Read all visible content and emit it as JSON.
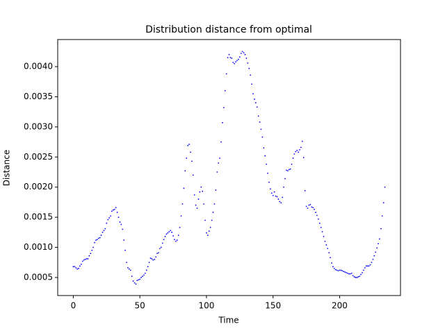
{
  "chart_data": {
    "type": "scatter",
    "title": "Distribution distance from optimal",
    "x_label": "Time",
    "y_label": "Distance",
    "xlim": [
      -11.7,
      245.7
    ],
    "ylim": [
      0.0002,
      0.00445
    ],
    "xticks": [
      0,
      50,
      100,
      150,
      200
    ],
    "yticks": [
      {
        "value": 0.0005,
        "label": "0.0005"
      },
      {
        "value": 0.001,
        "label": "0.0010"
      },
      {
        "value": 0.0015,
        "label": "0.0015"
      },
      {
        "value": 0.002,
        "label": "0.0020"
      },
      {
        "value": 0.0025,
        "label": "0.0025"
      },
      {
        "value": 0.003,
        "label": "0.0030"
      },
      {
        "value": 0.0035,
        "label": "0.0035"
      },
      {
        "value": 0.004,
        "label": "0.0040"
      }
    ],
    "grid": false,
    "color": "#0000ff",
    "x": [
      0,
      1,
      2,
      3,
      4,
      5,
      6,
      7,
      8,
      9,
      10,
      11,
      12,
      13,
      14,
      15,
      16,
      17,
      18,
      19,
      20,
      21,
      22,
      23,
      24,
      25,
      26,
      27,
      28,
      29,
      30,
      31,
      32,
      33,
      34,
      35,
      36,
      37,
      38,
      39,
      40,
      41,
      42,
      43,
      44,
      45,
      46,
      47,
      48,
      49,
      50,
      51,
      52,
      53,
      54,
      55,
      56,
      57,
      58,
      59,
      60,
      61,
      62,
      63,
      64,
      65,
      66,
      67,
      68,
      69,
      70,
      71,
      72,
      73,
      74,
      75,
      76,
      77,
      78,
      79,
      80,
      81,
      82,
      83,
      84,
      85,
      86,
      87,
      88,
      89,
      90,
      91,
      92,
      93,
      94,
      95,
      96,
      97,
      98,
      99,
      100,
      101,
      102,
      103,
      104,
      105,
      106,
      107,
      108,
      109,
      110,
      111,
      112,
      113,
      114,
      115,
      116,
      117,
      118,
      119,
      120,
      121,
      122,
      123,
      124,
      125,
      126,
      127,
      128,
      129,
      130,
      131,
      132,
      133,
      134,
      135,
      136,
      137,
      138,
      139,
      140,
      141,
      142,
      143,
      144,
      145,
      146,
      147,
      148,
      149,
      150,
      151,
      152,
      153,
      154,
      155,
      156,
      157,
      158,
      159,
      160,
      161,
      162,
      163,
      164,
      165,
      166,
      167,
      168,
      169,
      170,
      171,
      172,
      173,
      174,
      175,
      176,
      177,
      178,
      179,
      180,
      181,
      182,
      183,
      184,
      185,
      186,
      187,
      188,
      189,
      190,
      191,
      192,
      193,
      194,
      195,
      196,
      197,
      198,
      199,
      200,
      201,
      202,
      203,
      204,
      205,
      206,
      207,
      208,
      209,
      210,
      211,
      212,
      213,
      214,
      215,
      216,
      217,
      218,
      219,
      220,
      221,
      222,
      223,
      224,
      225,
      226,
      227,
      228,
      229,
      230,
      231,
      232,
      233,
      234
    ],
    "values": [
      0.00068,
      0.00068,
      0.00066,
      0.00064,
      0.00065,
      0.00069,
      0.00072,
      0.00077,
      0.00079,
      0.0008,
      0.00081,
      0.00081,
      0.00086,
      0.0009,
      0.00095,
      0.001,
      0.00108,
      0.00112,
      0.00113,
      0.00115,
      0.00116,
      0.0012,
      0.00125,
      0.00128,
      0.00131,
      0.0014,
      0.00146,
      0.00149,
      0.00152,
      0.0016,
      0.00162,
      0.00163,
      0.00166,
      0.00158,
      0.0015,
      0.00142,
      0.00138,
      0.0013,
      0.00112,
      0.00095,
      0.00075,
      0.00066,
      0.00064,
      0.00062,
      0.00052,
      0.00044,
      0.00041,
      0.00039,
      0.00045,
      0.00046,
      0.00047,
      0.0005,
      0.00052,
      0.00054,
      0.00057,
      0.00062,
      0.00068,
      0.00075,
      0.00082,
      0.00081,
      0.00079,
      0.0008,
      0.00084,
      0.0009,
      0.00091,
      0.00098,
      0.001,
      0.00107,
      0.00113,
      0.00118,
      0.00122,
      0.00124,
      0.00126,
      0.00128,
      0.00125,
      0.00119,
      0.00113,
      0.0011,
      0.00112,
      0.0012,
      0.00133,
      0.00152,
      0.00172,
      0.00198,
      0.00227,
      0.00248,
      0.00269,
      0.00271,
      0.00258,
      0.00243,
      0.0022,
      0.00187,
      0.0017,
      0.00165,
      0.0018,
      0.00192,
      0.002,
      0.00193,
      0.00172,
      0.00145,
      0.00124,
      0.0012,
      0.00127,
      0.00133,
      0.00145,
      0.00158,
      0.00172,
      0.00195,
      0.00225,
      0.0024,
      0.00248,
      0.00275,
      0.00307,
      0.00332,
      0.0036,
      0.00388,
      0.00415,
      0.0042,
      0.00415,
      0.00414,
      0.00407,
      0.00405,
      0.00408,
      0.0041,
      0.00412,
      0.00416,
      0.00422,
      0.00425,
      0.00423,
      0.0042,
      0.00414,
      0.00406,
      0.00397,
      0.00386,
      0.00371,
      0.00355,
      0.00346,
      0.0034,
      0.00333,
      0.00318,
      0.00308,
      0.00296,
      0.00283,
      0.00265,
      0.00252,
      0.00238,
      0.00223,
      0.00208,
      0.00197,
      0.0019,
      0.00186,
      0.00192,
      0.00185,
      0.00184,
      0.0018,
      0.00176,
      0.00174,
      0.00183,
      0.002,
      0.00214,
      0.00228,
      0.00227,
      0.00229,
      0.0023,
      0.00238,
      0.00248,
      0.00255,
      0.00259,
      0.00261,
      0.00258,
      0.00262,
      0.00266,
      0.00276,
      0.00249,
      0.00194,
      0.00168,
      0.00165,
      0.0017,
      0.00171,
      0.00167,
      0.00166,
      0.00163,
      0.00158,
      0.00153,
      0.00147,
      0.0014,
      0.00133,
      0.00126,
      0.00118,
      0.0011,
      0.00104,
      0.00098,
      0.00091,
      0.00083,
      0.00074,
      0.00068,
      0.00065,
      0.00063,
      0.00062,
      0.00061,
      0.00062,
      0.00062,
      0.00061,
      0.0006,
      0.00059,
      0.00058,
      0.00057,
      0.00056,
      0.00056,
      0.00057,
      0.00053,
      0.00051,
      0.0005,
      0.0005,
      0.00051,
      0.00052,
      0.00055,
      0.00058,
      0.00062,
      0.00066,
      0.00069,
      0.00069,
      0.00069,
      0.00071,
      0.00075,
      0.0008,
      0.00086,
      0.00092,
      0.00099,
      0.00106,
      0.00114,
      0.00131,
      0.00152,
      0.00174,
      0.002
    ]
  }
}
